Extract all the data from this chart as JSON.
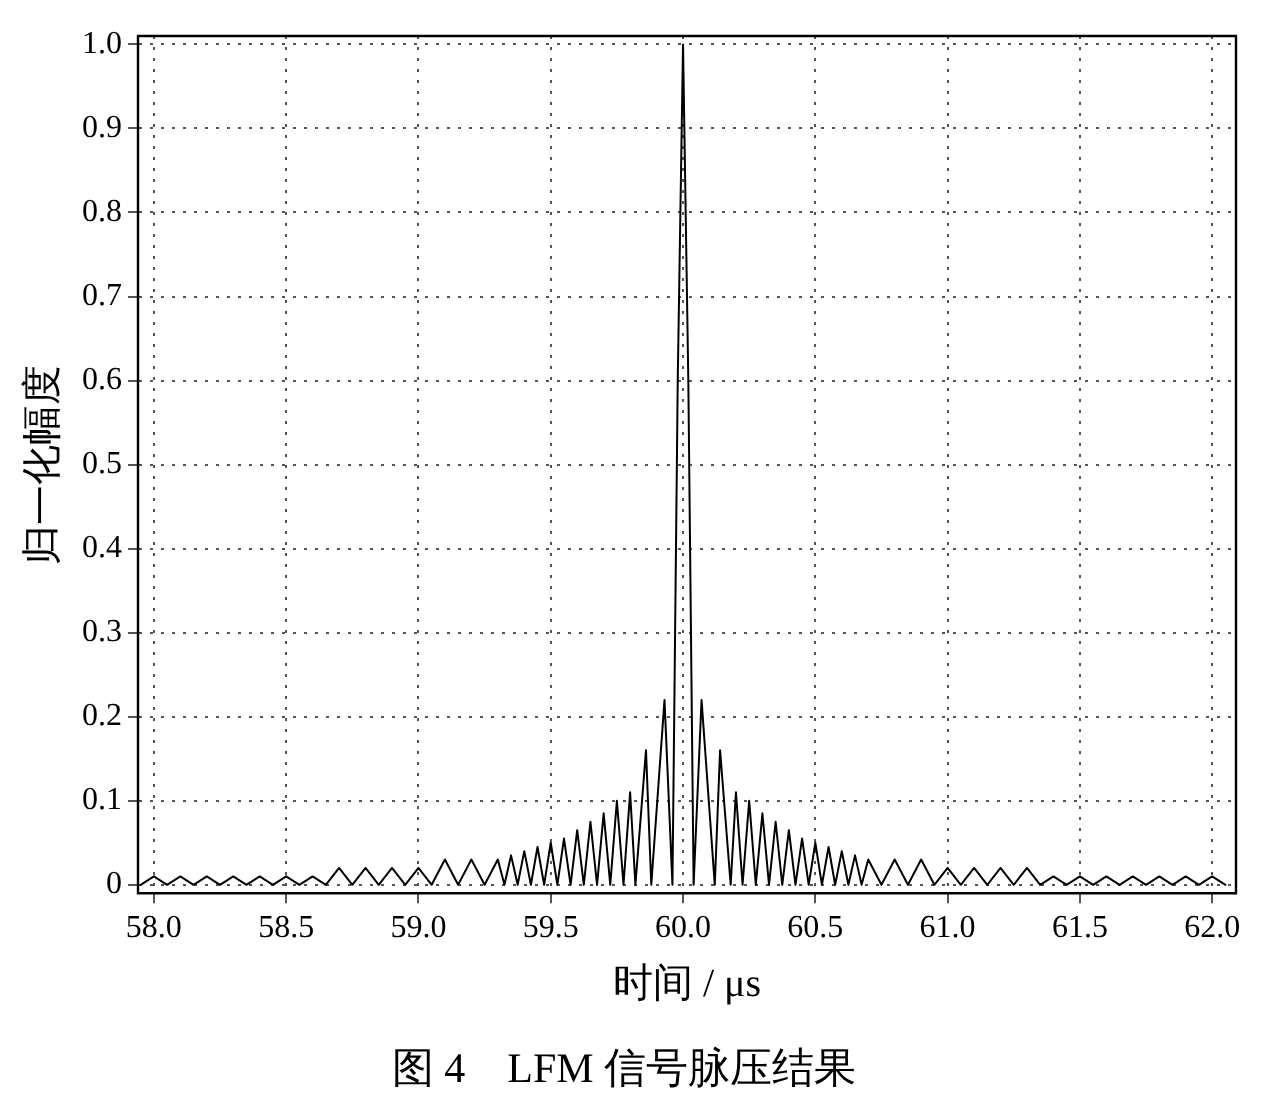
{
  "chart_data": {
    "type": "line",
    "title": "图 4　LFM 信号脉压结果",
    "xlabel": "时间 / μs",
    "ylabel": "归一化幅度",
    "xlim": [
      57.94,
      62.09
    ],
    "ylim": [
      -0.01,
      1.01
    ],
    "xticks": [
      {
        "value": 58,
        "label": "58.0"
      },
      58.5,
      {
        "value": 59,
        "label": "59.0"
      },
      59.5,
      {
        "value": 60,
        "label": "60.0"
      },
      60.5,
      {
        "value": 61,
        "label": "61.0"
      },
      61.5,
      {
        "value": 62,
        "label": "62.0"
      }
    ],
    "yticks": [
      0,
      0.1,
      0.2,
      0.3,
      0.4,
      0.5,
      0.6,
      0.7,
      0.8,
      0.9,
      {
        "value": 1,
        "label": "1.0"
      }
    ],
    "grid": true,
    "legend": false,
    "marker": "none",
    "line_style": "solid",
    "series": [
      {
        "color": "#000000",
        "x": [
          57.95,
          58.0,
          58.05,
          58.1,
          58.15,
          58.2,
          58.25,
          58.3,
          58.35,
          58.4,
          58.45,
          58.5,
          58.55,
          58.6,
          58.65,
          58.7,
          58.75,
          58.8,
          58.85,
          58.9,
          58.95,
          59.0,
          59.05,
          59.1,
          59.15,
          59.2,
          59.25,
          59.3,
          59.325,
          59.35,
          59.375,
          59.4,
          59.425,
          59.45,
          59.475,
          59.5,
          59.525,
          59.55,
          59.575,
          59.6,
          59.625,
          59.65,
          59.675,
          59.7,
          59.725,
          59.75,
          59.775,
          59.8,
          59.82,
          59.86,
          59.88,
          59.93,
          59.96,
          59.98,
          60.0,
          60.02,
          60.04,
          60.07,
          60.12,
          60.14,
          60.18,
          60.2,
          60.225,
          60.25,
          60.275,
          60.3,
          60.325,
          60.35,
          60.375,
          60.4,
          60.425,
          60.45,
          60.475,
          60.5,
          60.525,
          60.55,
          60.575,
          60.6,
          60.625,
          60.65,
          60.675,
          60.7,
          60.75,
          60.8,
          60.85,
          60.9,
          60.95,
          61.0,
          61.05,
          61.1,
          61.15,
          61.2,
          61.25,
          61.3,
          61.35,
          61.4,
          61.45,
          61.5,
          61.55,
          61.6,
          61.65,
          61.7,
          61.75,
          61.8,
          61.85,
          61.9,
          61.95,
          62.0,
          62.05
        ],
        "values": [
          0,
          0.01,
          0,
          0.01,
          0,
          0.01,
          0,
          0.01,
          0,
          0.01,
          0,
          0.01,
          0,
          0.01,
          0,
          0.02,
          0,
          0.02,
          0,
          0.02,
          0,
          0.02,
          0,
          0.03,
          0,
          0.03,
          0,
          0.03,
          0,
          0.035,
          0,
          0.04,
          0,
          0.045,
          0,
          0.05,
          0,
          0.055,
          0,
          0.065,
          0,
          0.075,
          0,
          0.085,
          0,
          0.1,
          0,
          0.11,
          0,
          0.16,
          0,
          0.22,
          0,
          0.6,
          1.0,
          0.6,
          0,
          0.22,
          0,
          0.16,
          0,
          0.11,
          0,
          0.1,
          0,
          0.085,
          0,
          0.075,
          0,
          0.065,
          0,
          0.055,
          0,
          0.05,
          0,
          0.045,
          0,
          0.04,
          0,
          0.035,
          0,
          0.03,
          0,
          0.03,
          0,
          0.03,
          0,
          0.02,
          0,
          0.02,
          0,
          0.02,
          0,
          0.02,
          0,
          0.01,
          0,
          0.01,
          0,
          0.01,
          0,
          0.01,
          0,
          0.01,
          0,
          0.01,
          0,
          0.01,
          0
        ]
      }
    ]
  }
}
